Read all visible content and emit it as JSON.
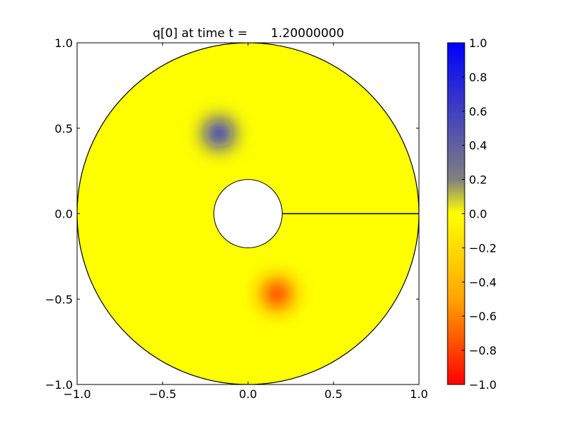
{
  "chart_data": {
    "type": "heatmap",
    "title": "q[0] at time t =      1.20000000",
    "xlabel": "",
    "ylabel": "",
    "xlim": [
      -1.0,
      1.0
    ],
    "ylim": [
      -1.0,
      1.0
    ],
    "xticks": [
      -1.0,
      -0.5,
      0.0,
      0.5,
      1.0
    ],
    "xtick_labels": [
      "−1.0",
      "−0.5",
      "0.0",
      "0.5",
      "1.0"
    ],
    "yticks": [
      -1.0,
      -0.5,
      0.0,
      0.5,
      1.0
    ],
    "ytick_labels": [
      "−1.0",
      "−0.5",
      "0.0",
      "0.5",
      "1.0"
    ],
    "domain": {
      "shape": "annulus",
      "outer_radius": 1.0,
      "inner_radius": 0.2,
      "branch_cut": {
        "from": [
          0.2,
          0.0
        ],
        "to": [
          1.0,
          0.0
        ]
      }
    },
    "background_value": 0.0,
    "features": [
      {
        "center": [
          -0.17,
          0.47
        ],
        "peak_value": 0.9,
        "sign": "positive"
      },
      {
        "center": [
          0.17,
          -0.47
        ],
        "peak_value": -0.9,
        "sign": "negative"
      }
    ],
    "colorbar": {
      "range": [
        -1.0,
        1.0
      ],
      "ticks": [
        1.0,
        0.8,
        0.6,
        0.4,
        0.2,
        0.0,
        -0.2,
        -0.4,
        -0.6,
        -0.8,
        -1.0
      ],
      "tick_labels": [
        "1.0",
        "0.8",
        "0.6",
        "0.4",
        "0.2",
        "0.0",
        "−0.2",
        "−0.4",
        "−0.6",
        "−0.8",
        "−1.0"
      ],
      "colors": {
        "max": "#0000ff",
        "mid_upper": "#808080",
        "zero": "#ffff00",
        "mid_lower": "#ffa500",
        "min": "#ff0000"
      }
    }
  }
}
